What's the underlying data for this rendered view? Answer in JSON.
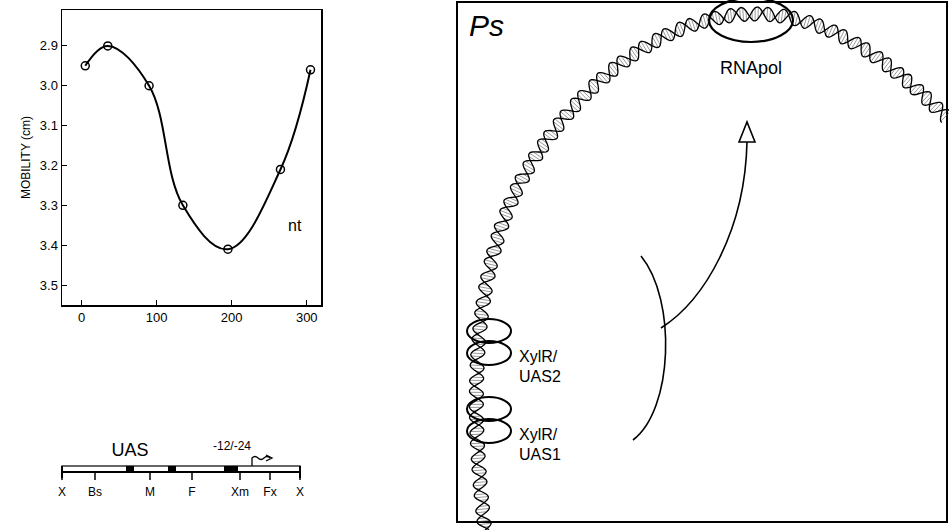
{
  "chart_data": {
    "type": "line",
    "marker": "circle-open",
    "line_style": "solid",
    "color": "#000000",
    "x": [
      5,
      35,
      90,
      135,
      195,
      265,
      305
    ],
    "values": [
      2.95,
      2.9,
      3.0,
      3.3,
      3.41,
      3.21,
      2.96
    ],
    "xlim": [
      -26,
      319
    ],
    "xticks": [
      0,
      100,
      200,
      300
    ],
    "ylim": [
      3.55,
      2.81
    ],
    "yticks": [
      2.9,
      {
        "value": 3,
        "label": "3.0"
      },
      3.1,
      3.2,
      3.3,
      3.4,
      3.5
    ],
    "y_label": "MOBILITY (cm)",
    "annotations": [
      {
        "text": "nt",
        "x": 284,
        "y": 3.35
      }
    ],
    "grid": false
  },
  "map": {
    "label": "UAS",
    "promoter": "-12/-24",
    "sites": [
      "X",
      "Bs",
      "M",
      "F",
      "Xm",
      "Fx",
      "X"
    ]
  },
  "diagram": {
    "panel": "Ps",
    "polymerase": "RNApol",
    "binding_sites": [
      {
        "protein": "XylR/",
        "site": "UAS2"
      },
      {
        "protein": "XylR/",
        "site": "UAS1"
      }
    ]
  }
}
